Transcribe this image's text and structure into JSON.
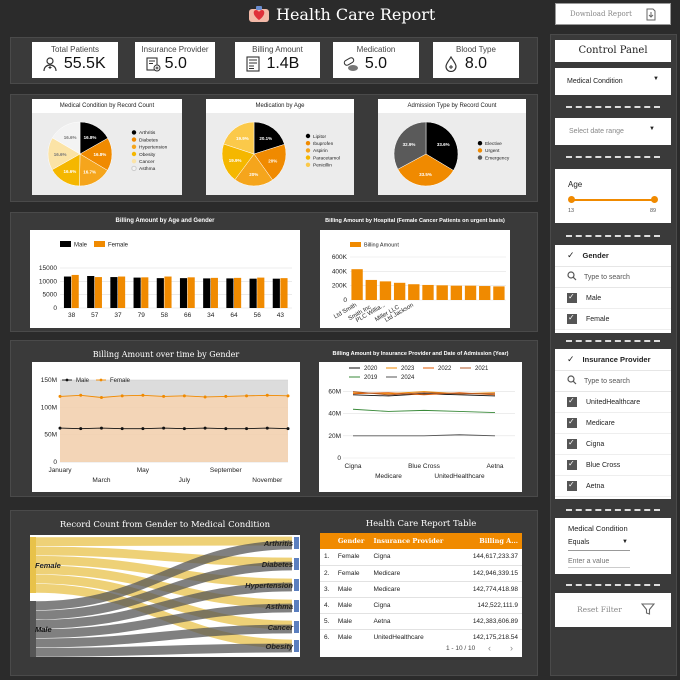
{
  "header": {
    "title": "Health Care Report",
    "download_label": "Download Report"
  },
  "kpis": [
    {
      "label": "Total Patients",
      "value": "55.5K",
      "icon": "patient-icon"
    },
    {
      "label": "Insurance Provider",
      "value": "5.0",
      "icon": "insurance-icon"
    },
    {
      "label": "Billing Amount",
      "value": "1.4B",
      "icon": "bill-icon"
    },
    {
      "label": "Medication",
      "value": "5.0",
      "icon": "pills-icon"
    },
    {
      "label": "Blood Type",
      "value": "8.0",
      "icon": "blood-drop-icon"
    }
  ],
  "control_panel": {
    "title": "Control Panel",
    "medical_condition_select": "Medical Condition",
    "date_range_placeholder": "Select date range",
    "age": {
      "label": "Age",
      "min": "13",
      "max": "89"
    },
    "gender_filter": {
      "title": "Gender",
      "search_placeholder": "Type to search",
      "options": [
        "Male",
        "Female"
      ]
    },
    "insurance_filter": {
      "title": "Insurance Provider",
      "search_placeholder": "Type to search",
      "options": [
        "UnitedHealthcare",
        "Medicare",
        "Cigna",
        "Blue Cross",
        "Aetna"
      ]
    },
    "condition_filter": {
      "label": "Medical Condition",
      "operator": "Equals",
      "value_placeholder": "Enter a value"
    },
    "reset_label": "Reset Filter"
  },
  "chart_data": [
    {
      "type": "pie",
      "title": "Medical Condition by Record Count",
      "labels": [
        "Arthritis",
        "Diabetes",
        "Hypertension",
        "Obesity",
        "Cancer",
        "Asthma"
      ],
      "values": [
        16.8,
        16.8,
        16.7,
        16.6,
        16.6,
        16.6
      ],
      "slice_labels": [
        "16.8%",
        "16.8%",
        "16.7%",
        "16.6%",
        "16.6%",
        "16.6%"
      ],
      "colors": [
        "#000000",
        "#f08a00",
        "#f5a51c",
        "#f5b700",
        "#fbe3a6",
        "#f3f3f3"
      ]
    },
    {
      "type": "pie",
      "title": "Medication by Age",
      "labels": [
        "Lipitor",
        "Ibuprofen",
        "Aspirin",
        "Paracetamol",
        "Penicillin"
      ],
      "values": [
        20.1,
        20,
        20,
        19.9,
        19.9
      ],
      "slice_labels": [
        "20.1%",
        "20%",
        "20%",
        "19.9%",
        "19.9%"
      ],
      "colors": [
        "#000000",
        "#f08a00",
        "#f5a51c",
        "#f5b700",
        "#fbc94a"
      ]
    },
    {
      "type": "pie",
      "title": "Admission Type by Record Count",
      "labels": [
        "Elective",
        "Urgent",
        "Emergency"
      ],
      "values": [
        33.6,
        33.5,
        32.9
      ],
      "slice_labels": [
        "33.6%",
        "33.5%",
        "32.9%"
      ],
      "colors": [
        "#000000",
        "#f08a00",
        "#5a5a5a"
      ]
    },
    {
      "type": "bar",
      "title": "Billing Amount by Age and Gender",
      "categories": [
        "38",
        "57",
        "37",
        "79",
        "58",
        "66",
        "34",
        "64",
        "56",
        "43"
      ],
      "series": [
        {
          "name": "Male",
          "values": [
            11800,
            12000,
            11600,
            11400,
            11200,
            11200,
            11100,
            11100,
            11000,
            11000
          ],
          "color": "#000000"
        },
        {
          "name": "Female",
          "values": [
            12400,
            11600,
            11800,
            11500,
            11800,
            11500,
            11300,
            11300,
            11400,
            11200
          ],
          "color": "#f08a00"
        }
      ],
      "yticks": [
        "0",
        "5000",
        "10000",
        "15000"
      ],
      "ylim": [
        0,
        15000
      ]
    },
    {
      "type": "bar",
      "title": "Billing Amount by Hospital (Female Cancer Patients on urgent basis)",
      "categories": [
        "Ltd Smith",
        "Smith Inc",
        "PLC Willia...",
        "Miller LLC",
        "Ltd Jackson",
        "",
        "",
        "",
        "",
        "",
        ""
      ],
      "series": [
        {
          "name": "Billing Amount",
          "values": [
            430000,
            280000,
            260000,
            240000,
            220000,
            210000,
            205000,
            200000,
            200000,
            195000,
            190000
          ],
          "color": "#f08a00"
        }
      ],
      "yticks": [
        "0",
        "200K",
        "400K",
        "600K"
      ],
      "ylim": [
        0,
        600000
      ]
    },
    {
      "type": "line",
      "title": "Billing Amount over time by Gender",
      "x": [
        "January",
        "February",
        "March",
        "April",
        "May",
        "June",
        "July",
        "August",
        "September",
        "October",
        "November",
        "December"
      ],
      "xtick_labels_top": [
        "January",
        "",
        "",
        "",
        "May",
        "",
        "",
        "",
        "September",
        "",
        "",
        ""
      ],
      "xtick_labels_bottom": [
        "",
        "",
        "March",
        "",
        "",
        "",
        "July",
        "",
        "",
        "",
        "November",
        ""
      ],
      "series": [
        {
          "name": "Male",
          "values": [
            62,
            61,
            62,
            61,
            61,
            62,
            61,
            62,
            61,
            61,
            62,
            61
          ],
          "color": "#111111"
        },
        {
          "name": "Female",
          "values": [
            120,
            122,
            118,
            121,
            122,
            120,
            121,
            119,
            120,
            121,
            122,
            121
          ],
          "color": "#f08a00"
        }
      ],
      "yticks": [
        "0",
        "50M",
        "100M",
        "150M"
      ],
      "ylim": [
        0,
        150
      ]
    },
    {
      "type": "line",
      "title": "Billing Amount by Insurance Provider and Date of Admission (Year)",
      "x": [
        "Cigna",
        "Medicare",
        "Blue Cross",
        "UnitedHealthcare",
        "Aetna"
      ],
      "xtick_labels_top": [
        "Cigna",
        "",
        "Blue Cross",
        "",
        "Aetna"
      ],
      "xtick_labels_bottom": [
        "",
        "Medicare",
        "",
        "UnitedHealthcare",
        ""
      ],
      "series": [
        {
          "name": "2020",
          "values": [
            57,
            56,
            58,
            57,
            56
          ],
          "color": "#111111"
        },
        {
          "name": "2023",
          "values": [
            59,
            58,
            60,
            58,
            59
          ],
          "color": "#f08a00"
        },
        {
          "name": "2022",
          "values": [
            58,
            59,
            57,
            59,
            57
          ],
          "color": "#e05a00"
        },
        {
          "name": "2021",
          "values": [
            60,
            57,
            59,
            58,
            58
          ],
          "color": "#b05a2a"
        },
        {
          "name": "2019",
          "values": [
            44,
            42,
            43,
            42,
            41
          ],
          "color": "#3a8a3a"
        },
        {
          "name": "2024",
          "values": [
            20,
            20,
            20,
            21,
            20
          ],
          "color": "#555555"
        }
      ],
      "yticks": [
        "0",
        "20M",
        "40M",
        "60M"
      ],
      "ylim": [
        0,
        65
      ]
    },
    {
      "type": "sankey",
      "title": "Record Count from Gender to Medical Condition",
      "sources": [
        "Female",
        "Male"
      ],
      "targets": [
        "Arthritis",
        "Diabetes",
        "Hypertension",
        "Asthma",
        "Cancer",
        "Obesity"
      ]
    },
    {
      "type": "table",
      "title": "Health Care Report Table",
      "columns": [
        "",
        "Gender",
        "Insurance Provider",
        "Billing A..."
      ],
      "rows": [
        [
          "1.",
          "Female",
          "Cigna",
          "144,617,233.37"
        ],
        [
          "2.",
          "Female",
          "Medicare",
          "142,946,339.15"
        ],
        [
          "3.",
          "Male",
          "Medicare",
          "142,774,418.98"
        ],
        [
          "4.",
          "Male",
          "Cigna",
          "142,522,111.9"
        ],
        [
          "5.",
          "Male",
          "Aetna",
          "142,383,606.89"
        ],
        [
          "6.",
          "Male",
          "UnitedHealthcare",
          "142,175,218.54"
        ]
      ],
      "pagination": "1 - 10 / 10"
    }
  ]
}
